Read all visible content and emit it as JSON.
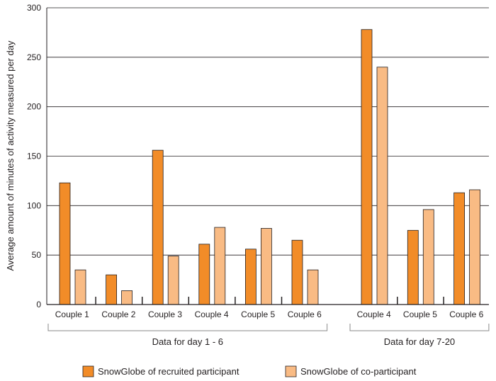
{
  "chart_data": {
    "type": "bar",
    "ylabel": "Average amount of minutes of activity measured per day",
    "ylim": [
      0,
      300
    ],
    "yticks": [
      0,
      50,
      100,
      150,
      200,
      250,
      300
    ],
    "grid": true,
    "legend_placement": "bottom",
    "colors": {
      "recruited": "#f28c28",
      "co_participant": "#f9bb84",
      "grid": "#231f20",
      "axis": "#231f20"
    },
    "series": [
      {
        "name": "SnowGlobe of recruited participant"
      },
      {
        "name": "SnowGlobe of co-participant"
      }
    ],
    "groups": [
      {
        "label": "Data for day 1 - 6",
        "categories": [
          "Couple 1",
          "Couple 2",
          "Couple 3",
          "Couple 4",
          "Couple 5",
          "Couple 6"
        ],
        "recruited": [
          123,
          30,
          156,
          61,
          56,
          65
        ],
        "co_participant": [
          35,
          14,
          49,
          78,
          77,
          35
        ]
      },
      {
        "label": "Data for day 7-20",
        "categories": [
          "Couple 4",
          "Couple 5",
          "Couple 6"
        ],
        "recruited": [
          278,
          75,
          113
        ],
        "co_participant": [
          240,
          96,
          116
        ]
      }
    ]
  }
}
